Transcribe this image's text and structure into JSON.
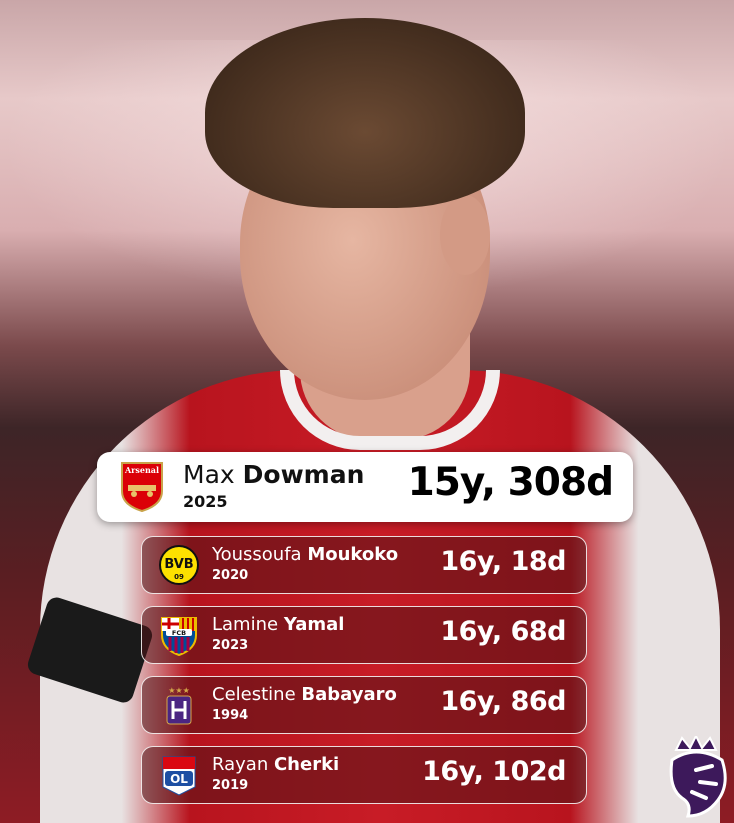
{
  "featured": {
    "first": "Max",
    "last": "Dowman",
    "year": "2025",
    "age": "15y, 308d",
    "club": "Arsenal",
    "badge_text": "Arsenal",
    "color": "#db0007"
  },
  "rows": [
    {
      "first": "Youssoufa",
      "last": "Moukoko",
      "year": "2020",
      "age": "16y, 18d",
      "club": "Borussia Dortmund",
      "badge_text": "BVB 09",
      "color": "#fde100"
    },
    {
      "first": "Lamine",
      "last": "Yamal",
      "year": "2023",
      "age": "16y, 68d",
      "club": "FC Barcelona",
      "badge_text": "FCB",
      "color": "#a50044"
    },
    {
      "first": "Celestine",
      "last": "Babayaro",
      "year": "1994",
      "age": "16y, 86d",
      "club": "Anderlecht",
      "color": "#4b2582"
    },
    {
      "first": "Rayan",
      "last": "Cherki",
      "year": "2019",
      "age": "16y, 102d",
      "club": "Olympique Lyonnais",
      "badge_text": "OL",
      "color": "#1d4fa3"
    }
  ],
  "league_logo": "Premier League lion",
  "league_color": "#3d195b"
}
